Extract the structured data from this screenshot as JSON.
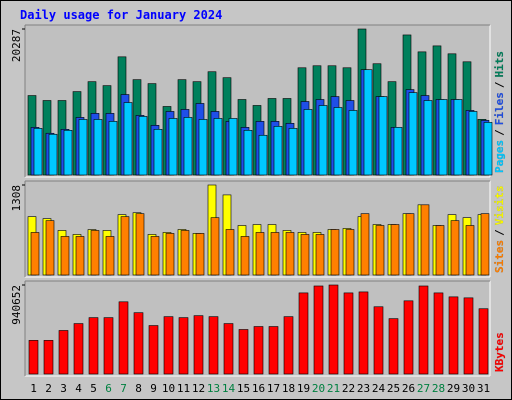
{
  "chart_data": [
    {
      "type": "bar",
      "title": "Daily usage for January 2024",
      "ylim": [
        0,
        20287
      ],
      "yticks": [
        20287
      ],
      "legend_separator": "/",
      "series": [
        {
          "name": "Pages",
          "color": "#00c8ff",
          "values": [
            6480,
            5660,
            6210,
            7720,
            7720,
            7450,
            10070,
            8140,
            6350,
            7860,
            8000,
            7720,
            7860,
            7860,
            6210,
            5520,
            6760,
            6480,
            9110,
            9660,
            9380,
            8970,
            14630,
            10900,
            6620,
            11450,
            10350,
            10490,
            10490,
            8830,
            7310
          ]
        },
        {
          "name": "Files",
          "color": "#1f4fe8",
          "values": [
            6620,
            5800,
            6350,
            8000,
            8560,
            8560,
            11180,
            8280,
            6900,
            8830,
            9110,
            9940,
            8830,
            7450,
            6620,
            7450,
            7450,
            7180,
            10210,
            10490,
            10900,
            10350,
            14630,
            10900,
            6620,
            11870,
            11040,
            10490,
            10490,
            8970,
            7590
          ]
        },
        {
          "name": "Hits",
          "color": "#00805c",
          "values": [
            11040,
            10350,
            10350,
            11590,
            12970,
            12420,
            16420,
            13250,
            12700,
            9520,
            13250,
            12970,
            14350,
            13520,
            10490,
            9660,
            10630,
            10630,
            14900,
            15180,
            15180,
            14900,
            20287,
            15460,
            12970,
            19460,
            17110,
            17940,
            16840,
            15730,
            7730
          ]
        }
      ]
    },
    {
      "type": "bar",
      "ylim": [
        0,
        1308
      ],
      "yticks": [
        1308
      ],
      "legend_separator": "/",
      "series": [
        {
          "name": "Sites",
          "color": "#ff8000",
          "values": [
            618,
            790,
            560,
            560,
            647,
            560,
            848,
            891,
            560,
            604,
            647,
            604,
            833,
            661,
            560,
            618,
            618,
            618,
            589,
            589,
            661,
            661,
            891,
            719,
            733,
            891,
            1020,
            719,
            790,
            719,
            891
          ]
        },
        {
          "name": "Visits",
          "color": "#ffff00",
          "values": [
            848,
            819,
            647,
            589,
            660,
            647,
            877,
            905,
            589,
            618,
            661,
            604,
            1308,
            1164,
            719,
            733,
            733,
            647,
            618,
            618,
            661,
            676,
            848,
            733,
            733,
            891,
            1020,
            719,
            877,
            833,
            877
          ]
        }
      ]
    },
    {
      "type": "bar",
      "ylim": [
        0,
        940652
      ],
      "yticks": [
        940652
      ],
      "categories": [
        "1",
        "2",
        "3",
        "4",
        "5",
        "6",
        "7",
        "8",
        "9",
        "10",
        "11",
        "12",
        "13",
        "14",
        "15",
        "16",
        "17",
        "18",
        "19",
        "20",
        "21",
        "22",
        "23",
        "24",
        "25",
        "26",
        "27",
        "28",
        "29",
        "30",
        "31"
      ],
      "category_colors": [
        "#000000",
        "#000000",
        "#000000",
        "#000000",
        "#000000",
        "#008040",
        "#008040",
        "#000000",
        "#000000",
        "#000000",
        "#000000",
        "#000000",
        "#008040",
        "#008040",
        "#000000",
        "#000000",
        "#000000",
        "#000000",
        "#000000",
        "#008040",
        "#008040",
        "#000000",
        "#000000",
        "#000000",
        "#000000",
        "#000000",
        "#008040",
        "#008040",
        "#000000",
        "#000000",
        "#000000"
      ],
      "series": [
        {
          "name": "KBytes",
          "color": "#ff0000",
          "values": [
            355370,
            355370,
            459890,
            533050,
            595760,
            595760,
            763000,
            648020,
            512150,
            606220,
            595760,
            616670,
            606220,
            533050,
            470340,
            501700,
            501700,
            606220,
            857060,
            930230,
            940652,
            857060,
            867520,
            710740,
            585310,
            773450,
            930230,
            857060,
            815260,
            804800,
            689830
          ]
        }
      ]
    }
  ]
}
